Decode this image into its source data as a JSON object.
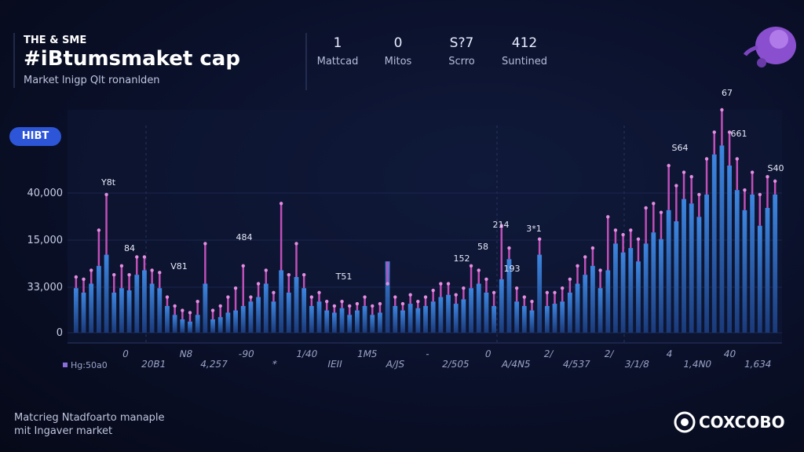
{
  "header": {
    "kicker": "THE & SME",
    "title": "#iBtumsmaket cap",
    "subtitle": "Market lnigp Qlt ronanlden"
  },
  "stats": [
    {
      "value": "1",
      "label": "Mattcad"
    },
    {
      "value": "0",
      "label": "Mitos"
    },
    {
      "value": "S?7",
      "label": "Scrro"
    },
    {
      "value": "412",
      "label": "Suntined"
    }
  ],
  "badge": "HIBT",
  "footer": {
    "line1": "Matcrieg Ntadfoarto manaple",
    "line2": "mit Ingaver market",
    "brand": "COXCOBO"
  },
  "chart_data": {
    "type": "bar",
    "legend_label": "Hg:50a0",
    "y_axis_labels": [
      "40,000",
      "15,000",
      "33,000",
      "0"
    ],
    "x_labels": [
      "0",
      "20B1",
      "N8",
      "4,257",
      "-90",
      "*",
      "1/40",
      "IEII",
      "1M5",
      "A/JS",
      "-",
      "2/505",
      "0",
      "A/4N5",
      "2/",
      "4/537",
      "2/",
      "3/1/8",
      "4",
      "1,4N0",
      "40",
      "1,634"
    ],
    "annotations": [
      "Y8t",
      "84",
      "V81",
      "484",
      "T51",
      "152",
      "58",
      "214",
      "193",
      "3*1",
      "S64",
      "67",
      "661",
      "S40"
    ],
    "ylim": [
      0,
      100
    ],
    "color": "#2f6fc4",
    "high_color": "#c04fb8",
    "values": [
      20,
      18,
      22,
      30,
      35,
      18,
      20,
      19,
      26,
      28,
      22,
      20,
      12,
      8,
      6,
      5,
      8,
      22,
      6,
      7,
      9,
      10,
      12,
      14,
      16,
      22,
      14,
      28,
      18,
      25,
      20,
      12,
      14,
      10,
      9,
      11,
      8,
      10,
      12,
      8,
      9,
      32,
      12,
      10,
      13,
      11,
      12,
      14,
      16,
      17,
      13,
      15,
      20,
      22,
      18,
      12,
      24,
      33,
      14,
      12,
      10,
      35,
      12,
      13,
      14,
      18,
      22,
      26,
      30,
      20,
      28,
      40,
      36,
      38,
      32,
      40,
      45,
      42,
      55,
      50,
      60,
      58,
      52,
      62,
      80,
      84,
      75,
      64,
      55,
      62,
      48,
      56,
      62
    ],
    "highs": [
      25,
      24,
      28,
      46,
      62,
      26,
      30,
      26,
      34,
      34,
      28,
      27,
      16,
      12,
      10,
      9,
      14,
      40,
      10,
      12,
      16,
      20,
      30,
      16,
      22,
      28,
      18,
      58,
      26,
      40,
      26,
      16,
      18,
      14,
      12,
      14,
      12,
      13,
      16,
      12,
      13,
      22,
      16,
      13,
      17,
      14,
      16,
      19,
      22,
      22,
      17,
      20,
      30,
      28,
      24,
      18,
      48,
      38,
      20,
      16,
      14,
      42,
      18,
      18,
      20,
      24,
      30,
      34,
      38,
      28,
      52,
      46,
      44,
      46,
      42,
      56,
      58,
      54,
      75,
      66,
      72,
      70,
      62,
      78,
      90,
      100,
      90,
      78,
      64,
      72,
      62,
      70,
      68
    ]
  }
}
